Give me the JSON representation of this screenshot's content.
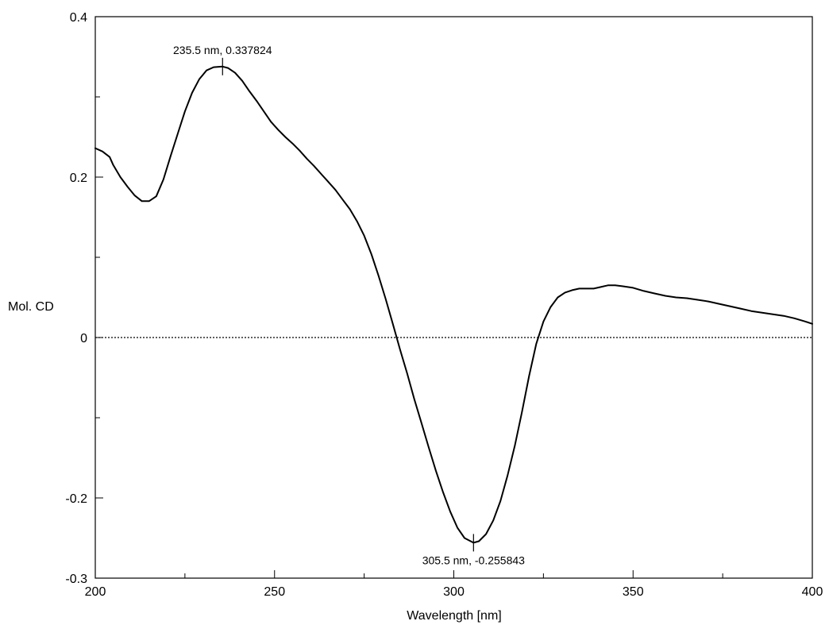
{
  "chart_data": {
    "type": "line",
    "title": "",
    "xlabel": "Wavelength [nm]",
    "ylabel": "Mol. CD",
    "xlim": [
      200,
      400
    ],
    "ylim": [
      -0.3,
      0.4
    ],
    "x_ticks": [
      200,
      250,
      300,
      350,
      400
    ],
    "x_tick_labels": [
      "200",
      "250",
      "300",
      "350",
      "400"
    ],
    "x_minor_ticks": [
      225,
      275,
      325,
      375
    ],
    "y_ticks": [
      -0.3,
      -0.2,
      0,
      0.2,
      0.4
    ],
    "y_tick_labels": [
      "-0.3",
      "-0.2",
      "0",
      "0.2",
      "0.4"
    ],
    "y_minor_ticks": [
      -0.1,
      0.1,
      0.3
    ],
    "grid": false,
    "zero_line": {
      "y": 0,
      "style": "dotted"
    },
    "series": [
      {
        "color": "#000000",
        "points": [
          [
            200,
            0.236
          ],
          [
            202,
            0.232
          ],
          [
            204,
            0.225
          ],
          [
            205,
            0.215
          ],
          [
            207,
            0.2
          ],
          [
            209,
            0.188
          ],
          [
            211,
            0.177
          ],
          [
            213,
            0.17
          ],
          [
            215,
            0.17
          ],
          [
            217,
            0.176
          ],
          [
            219,
            0.197
          ],
          [
            221,
            0.226
          ],
          [
            223,
            0.254
          ],
          [
            225,
            0.282
          ],
          [
            227,
            0.305
          ],
          [
            229,
            0.322
          ],
          [
            231,
            0.333
          ],
          [
            233,
            0.337
          ],
          [
            235.5,
            0.3378
          ],
          [
            237,
            0.336
          ],
          [
            239,
            0.33
          ],
          [
            241,
            0.32
          ],
          [
            243,
            0.307
          ],
          [
            245,
            0.295
          ],
          [
            247,
            0.282
          ],
          [
            249,
            0.269
          ],
          [
            251,
            0.259
          ],
          [
            253,
            0.25
          ],
          [
            255,
            0.242
          ],
          [
            257,
            0.233
          ],
          [
            259,
            0.223
          ],
          [
            261,
            0.214
          ],
          [
            263,
            0.204
          ],
          [
            265,
            0.194
          ],
          [
            267,
            0.184
          ],
          [
            269,
            0.172
          ],
          [
            271,
            0.16
          ],
          [
            273,
            0.145
          ],
          [
            275,
            0.127
          ],
          [
            277,
            0.104
          ],
          [
            279,
            0.077
          ],
          [
            281,
            0.048
          ],
          [
            283,
            0.017
          ],
          [
            285,
            -0.015
          ],
          [
            287,
            -0.045
          ],
          [
            289,
            -0.077
          ],
          [
            291,
            -0.107
          ],
          [
            293,
            -0.137
          ],
          [
            295,
            -0.166
          ],
          [
            297,
            -0.193
          ],
          [
            299,
            -0.217
          ],
          [
            301,
            -0.237
          ],
          [
            303,
            -0.25
          ],
          [
            305.5,
            -0.2558
          ],
          [
            307,
            -0.254
          ],
          [
            309,
            -0.245
          ],
          [
            311,
            -0.228
          ],
          [
            313,
            -0.204
          ],
          [
            315,
            -0.172
          ],
          [
            317,
            -0.135
          ],
          [
            319,
            -0.093
          ],
          [
            321,
            -0.048
          ],
          [
            323,
            -0.008
          ],
          [
            325,
            0.02
          ],
          [
            327,
            0.038
          ],
          [
            329,
            0.05
          ],
          [
            331,
            0.056
          ],
          [
            333,
            0.059
          ],
          [
            335,
            0.061
          ],
          [
            337,
            0.061
          ],
          [
            339,
            0.061
          ],
          [
            341,
            0.063
          ],
          [
            343,
            0.065
          ],
          [
            345,
            0.065
          ],
          [
            347,
            0.064
          ],
          [
            350,
            0.062
          ],
          [
            353,
            0.058
          ],
          [
            356,
            0.055
          ],
          [
            359,
            0.052
          ],
          [
            362,
            0.05
          ],
          [
            365,
            0.049
          ],
          [
            368,
            0.047
          ],
          [
            371,
            0.045
          ],
          [
            374,
            0.042
          ],
          [
            377,
            0.039
          ],
          [
            380,
            0.036
          ],
          [
            383,
            0.033
          ],
          [
            386,
            0.031
          ],
          [
            389,
            0.029
          ],
          [
            392,
            0.027
          ],
          [
            395,
            0.024
          ],
          [
            398,
            0.02
          ],
          [
            400,
            0.017
          ]
        ]
      }
    ],
    "annotations": [
      {
        "x": 235.5,
        "y": 0.337824,
        "text": "235.5 nm, 0.337824",
        "placement": "above"
      },
      {
        "x": 305.5,
        "y": -0.255843,
        "text": "305.5 nm, -0.255843",
        "placement": "below"
      }
    ]
  }
}
